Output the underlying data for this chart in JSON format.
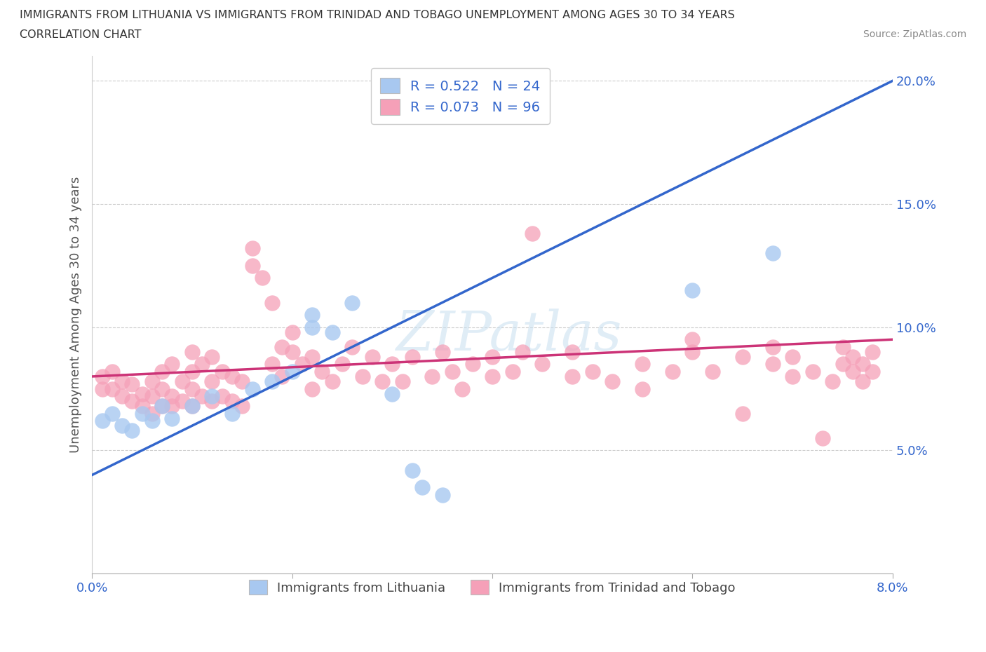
{
  "title_line1": "IMMIGRANTS FROM LITHUANIA VS IMMIGRANTS FROM TRINIDAD AND TOBAGO UNEMPLOYMENT AMONG AGES 30 TO 34 YEARS",
  "title_line2": "CORRELATION CHART",
  "source": "Source: ZipAtlas.com",
  "ylabel": "Unemployment Among Ages 30 to 34 years",
  "watermark": "ZIPatlas",
  "legend_label1": "R = 0.522   N = 24",
  "legend_label2": "R = 0.073   N = 96",
  "legend_xlabel1": "Immigrants from Lithuania",
  "legend_xlabel2": "Immigrants from Trinidad and Tobago",
  "color_lithuania": "#a8c8f0",
  "color_trinidad": "#f5a0b8",
  "line_color_lithuania": "#3366cc",
  "line_color_trinidad": "#cc3377",
  "line_color_dashed": "#99ccee",
  "xmin": 0.0,
  "xmax": 0.08,
  "ymin": 0.0,
  "ymax": 0.21,
  "lith_line_x0": 0.0,
  "lith_line_y0": 0.04,
  "lith_line_x1": 0.08,
  "lith_line_y1": 0.2,
  "trin_line_x0": 0.0,
  "trin_line_y0": 0.08,
  "trin_line_x1": 0.08,
  "trin_line_y1": 0.095,
  "dash_line_x0": 0.0,
  "dash_line_y0": 0.04,
  "dash_line_x1": 0.08,
  "dash_line_y1": 0.2,
  "lith_x": [
    0.001,
    0.002,
    0.003,
    0.004,
    0.005,
    0.006,
    0.007,
    0.008,
    0.01,
    0.012,
    0.014,
    0.016,
    0.018,
    0.02,
    0.022,
    0.022,
    0.024,
    0.026,
    0.03,
    0.032,
    0.033,
    0.035,
    0.06,
    0.068
  ],
  "lith_y": [
    0.062,
    0.065,
    0.06,
    0.058,
    0.065,
    0.062,
    0.068,
    0.063,
    0.068,
    0.072,
    0.065,
    0.075,
    0.078,
    0.082,
    0.1,
    0.105,
    0.098,
    0.11,
    0.073,
    0.042,
    0.035,
    0.032,
    0.115,
    0.13
  ],
  "trin_x": [
    0.001,
    0.001,
    0.002,
    0.002,
    0.003,
    0.003,
    0.004,
    0.004,
    0.005,
    0.005,
    0.006,
    0.006,
    0.006,
    0.007,
    0.007,
    0.007,
    0.008,
    0.008,
    0.008,
    0.009,
    0.009,
    0.01,
    0.01,
    0.01,
    0.01,
    0.011,
    0.011,
    0.012,
    0.012,
    0.012,
    0.013,
    0.013,
    0.014,
    0.014,
    0.015,
    0.015,
    0.016,
    0.016,
    0.017,
    0.018,
    0.018,
    0.019,
    0.019,
    0.02,
    0.02,
    0.021,
    0.022,
    0.022,
    0.023,
    0.024,
    0.025,
    0.026,
    0.027,
    0.028,
    0.029,
    0.03,
    0.031,
    0.032,
    0.034,
    0.035,
    0.036,
    0.037,
    0.038,
    0.04,
    0.04,
    0.042,
    0.043,
    0.044,
    0.045,
    0.048,
    0.048,
    0.05,
    0.052,
    0.055,
    0.055,
    0.058,
    0.06,
    0.06,
    0.062,
    0.065,
    0.065,
    0.068,
    0.068,
    0.07,
    0.07,
    0.072,
    0.073,
    0.074,
    0.075,
    0.075,
    0.076,
    0.076,
    0.077,
    0.077,
    0.078,
    0.078
  ],
  "trin_y": [
    0.075,
    0.08,
    0.075,
    0.082,
    0.072,
    0.078,
    0.07,
    0.077,
    0.068,
    0.073,
    0.065,
    0.072,
    0.078,
    0.068,
    0.075,
    0.082,
    0.068,
    0.072,
    0.085,
    0.07,
    0.078,
    0.068,
    0.075,
    0.082,
    0.09,
    0.072,
    0.085,
    0.07,
    0.078,
    0.088,
    0.072,
    0.082,
    0.07,
    0.08,
    0.068,
    0.078,
    0.125,
    0.132,
    0.12,
    0.11,
    0.085,
    0.092,
    0.08,
    0.09,
    0.098,
    0.085,
    0.075,
    0.088,
    0.082,
    0.078,
    0.085,
    0.092,
    0.08,
    0.088,
    0.078,
    0.085,
    0.078,
    0.088,
    0.08,
    0.09,
    0.082,
    0.075,
    0.085,
    0.08,
    0.088,
    0.082,
    0.09,
    0.138,
    0.085,
    0.08,
    0.09,
    0.082,
    0.078,
    0.085,
    0.075,
    0.082,
    0.09,
    0.095,
    0.082,
    0.088,
    0.065,
    0.085,
    0.092,
    0.08,
    0.088,
    0.082,
    0.055,
    0.078,
    0.085,
    0.092,
    0.082,
    0.088,
    0.078,
    0.085,
    0.082,
    0.09
  ]
}
